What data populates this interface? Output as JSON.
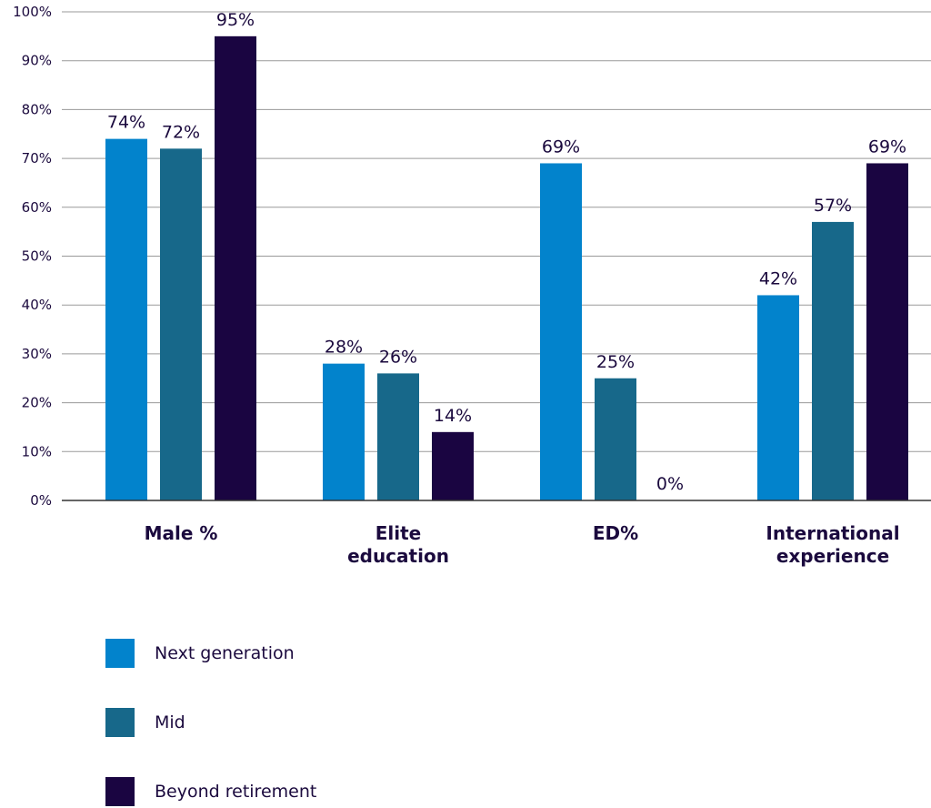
{
  "chart_data": {
    "type": "bar",
    "categories": [
      [
        "Male %"
      ],
      [
        "Elite",
        "education"
      ],
      [
        "ED%"
      ],
      [
        "International",
        "experience"
      ]
    ],
    "series": [
      {
        "name": "Next generation",
        "color": "#0283cc",
        "values": [
          74,
          28,
          69,
          42
        ],
        "labels": [
          "74%",
          "28%",
          "69%",
          "42%"
        ]
      },
      {
        "name": "Mid",
        "color": "#17688a",
        "values": [
          72,
          26,
          25,
          57
        ],
        "labels": [
          "72%",
          "26%",
          "25%",
          "57%"
        ]
      },
      {
        "name": "Beyond retirement",
        "color": "#1a0541",
        "values": [
          95,
          14,
          0,
          69
        ],
        "labels": [
          "95%",
          "14%",
          "0%",
          "69%"
        ]
      }
    ],
    "y_ticks": [
      "0%",
      "10%",
      "20%",
      "30%",
      "40%",
      "50%",
      "60%",
      "70%",
      "80%",
      "90%",
      "100%"
    ],
    "ylim": [
      0,
      100
    ],
    "grid": true,
    "legend_position": "bottom-left"
  }
}
